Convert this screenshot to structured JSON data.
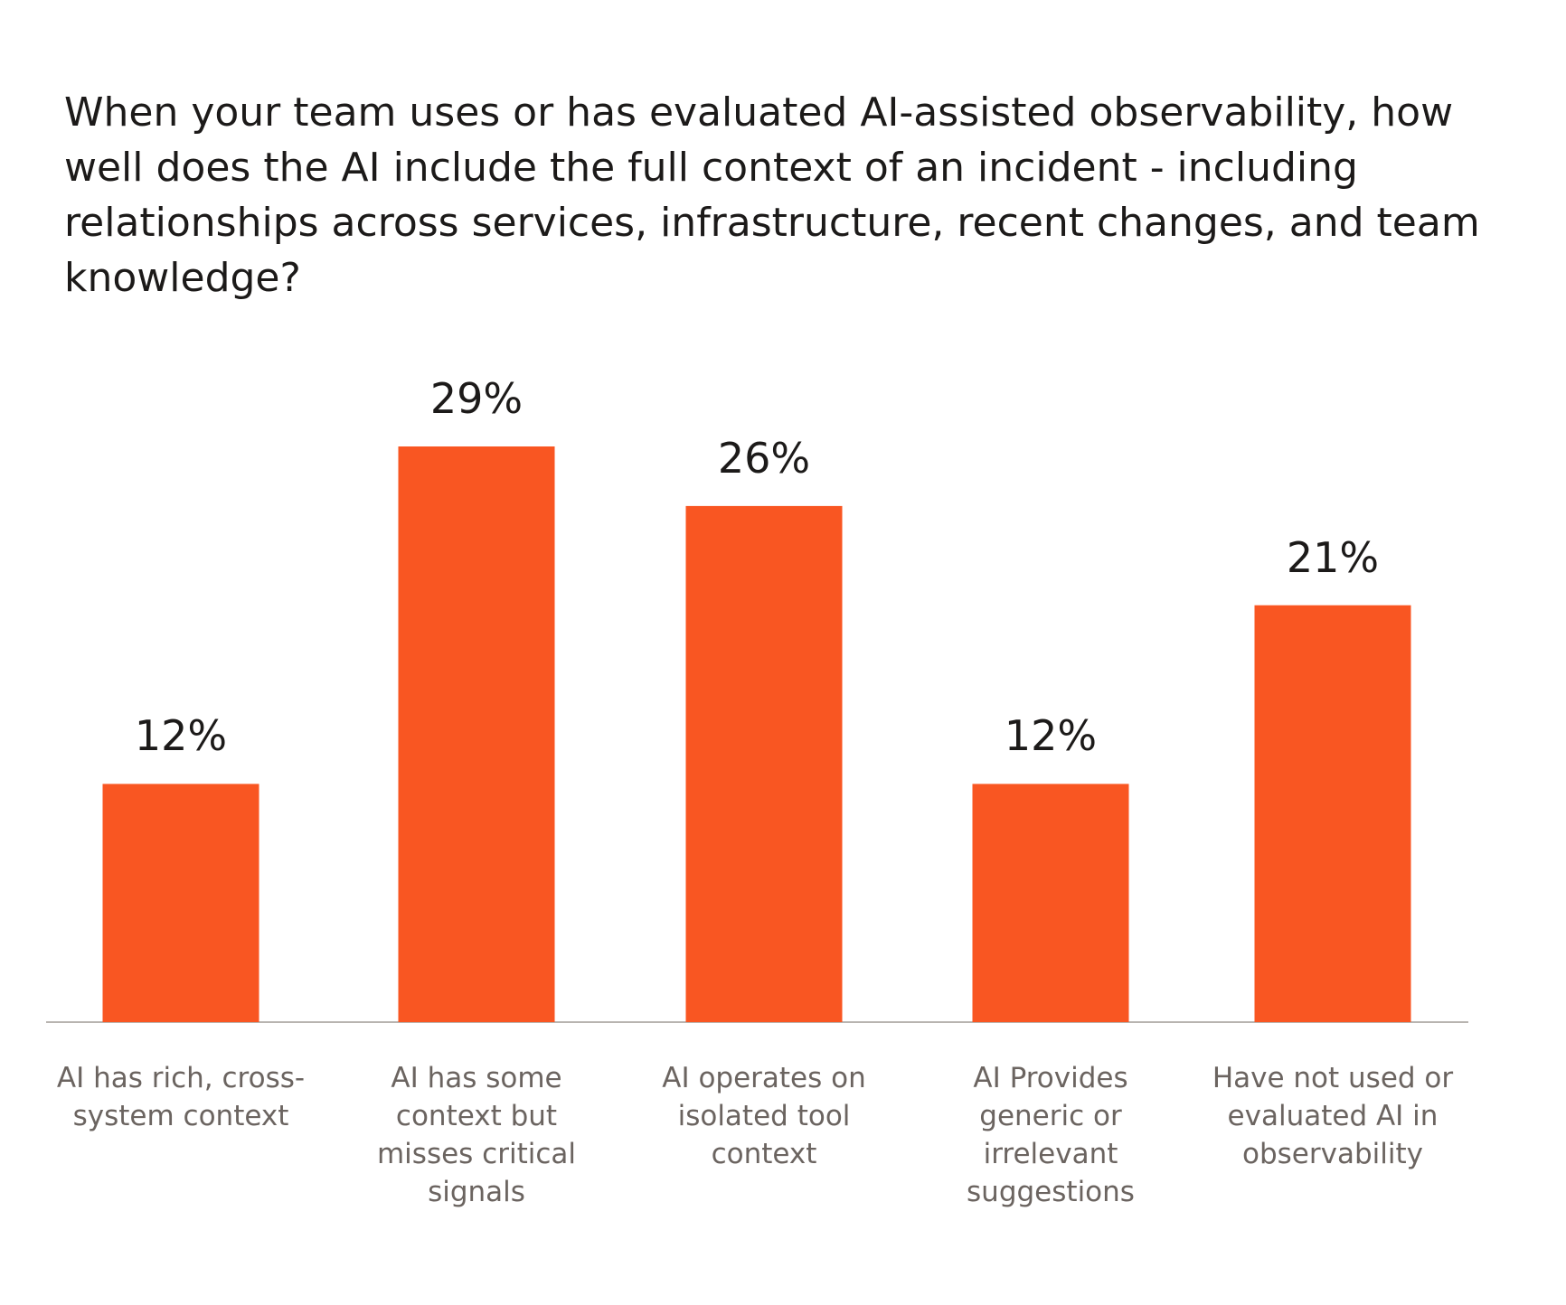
{
  "chart_data": {
    "type": "bar",
    "title": "When your team uses or has evaluated AI-assisted observability, how well does the AI include the full context of an incident - including relationships across services, infrastructure, recent changes, and team knowledge?",
    "categories": [
      "AI has rich, cross-system context",
      "AI has some context but misses critical signals",
      "AI operates on isolated tool context",
      "AI Provides generic or irrelevant suggestions",
      "Have not used or evaluated AI in observability"
    ],
    "values": [
      12,
      29,
      26,
      12,
      21
    ],
    "value_labels": [
      "12%",
      "29%",
      "26%",
      "12%",
      "21%"
    ],
    "color": "#f95622"
  }
}
